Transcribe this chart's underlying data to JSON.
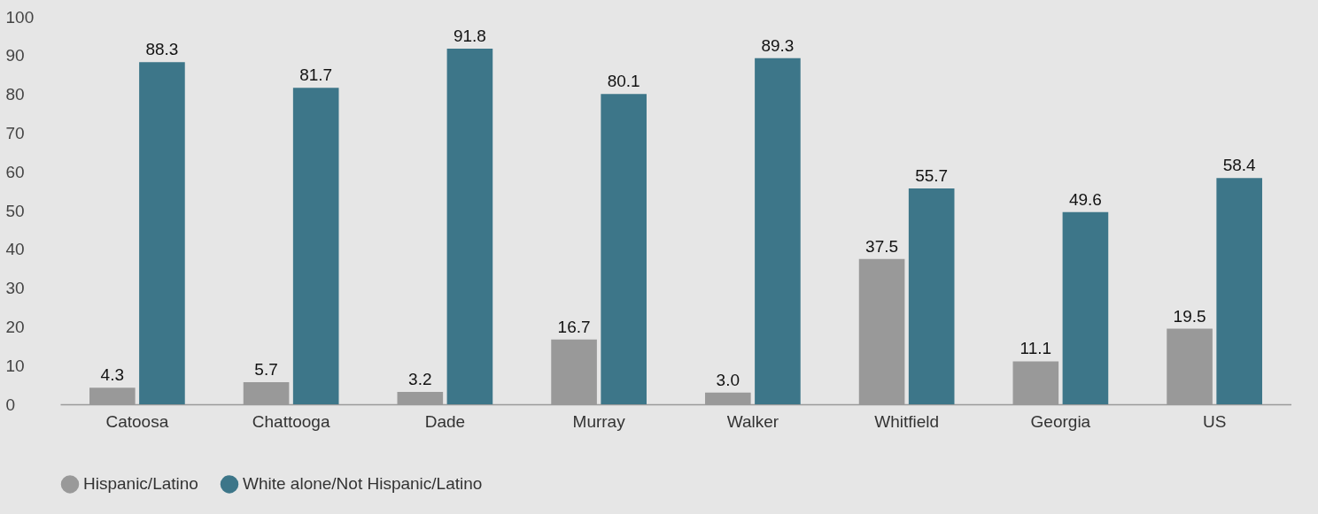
{
  "chart_data": {
    "type": "bar",
    "categories": [
      "Catoosa",
      "Chattooga",
      "Dade",
      "Murray",
      "Walker",
      "Whitfield",
      "Georgia",
      "US"
    ],
    "series": [
      {
        "name": "Hispanic/Latino",
        "color": "#999999",
        "values": [
          4.3,
          5.7,
          3.2,
          16.7,
          3.0,
          37.5,
          11.1,
          19.5
        ],
        "value_labels": [
          "4.3",
          "5.7",
          "3.2",
          "16.7",
          "3.0",
          "37.5",
          "11.1",
          "19.5"
        ]
      },
      {
        "name": "White alone/Not Hispanic/Latino",
        "color": "#3d7689",
        "values": [
          88.3,
          81.7,
          91.8,
          80.1,
          89.3,
          55.7,
          49.6,
          58.4
        ],
        "value_labels": [
          "88.3",
          "81.7",
          "91.8",
          "80.1",
          "89.3",
          "55.7",
          "49.6",
          "58.4"
        ]
      }
    ],
    "ylim": [
      0,
      100
    ],
    "yticks": [
      0,
      10,
      20,
      30,
      40,
      50,
      60,
      70,
      80,
      90,
      100
    ],
    "grid": false,
    "legend": "bottom"
  }
}
